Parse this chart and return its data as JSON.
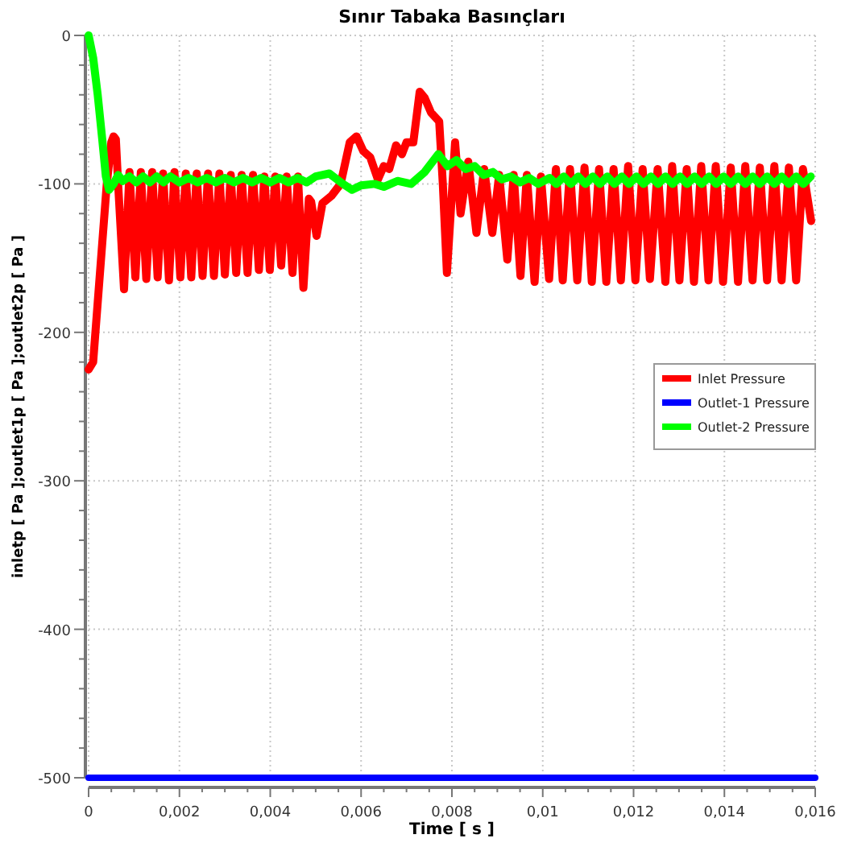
{
  "chart_data": {
    "type": "line",
    "title": "Sınır Tabaka Basınçları",
    "xlabel": "Time [ s ]",
    "ylabel": "inletp [ Pa ];outlet1p [ Pa ];outlet2p [ Pa ]",
    "xlim": [
      0,
      0.016
    ],
    "ylim": [
      -500,
      0
    ],
    "xticks": [
      {
        "value": 0,
        "label": "0"
      },
      {
        "value": 0.0005,
        "label": null
      },
      {
        "value": 0.001,
        "label": null
      },
      {
        "value": 0.0015,
        "label": null
      },
      {
        "value": 0.002,
        "label": "0,002"
      },
      {
        "value": 0.0025,
        "label": null
      },
      {
        "value": 0.003,
        "label": null
      },
      {
        "value": 0.0035,
        "label": null
      },
      {
        "value": 0.004,
        "label": "0,004"
      },
      {
        "value": 0.0045,
        "label": null
      },
      {
        "value": 0.005,
        "label": null
      },
      {
        "value": 0.0055,
        "label": null
      },
      {
        "value": 0.006,
        "label": "0,006"
      },
      {
        "value": 0.0065,
        "label": null
      },
      {
        "value": 0.007,
        "label": null
      },
      {
        "value": 0.0075,
        "label": null
      },
      {
        "value": 0.008,
        "label": "0,008"
      },
      {
        "value": 0.0085,
        "label": null
      },
      {
        "value": 0.009,
        "label": null
      },
      {
        "value": 0.0095,
        "label": null
      },
      {
        "value": 0.01,
        "label": "0,01"
      },
      {
        "value": 0.0105,
        "label": null
      },
      {
        "value": 0.011,
        "label": null
      },
      {
        "value": 0.0115,
        "label": null
      },
      {
        "value": 0.012,
        "label": "0,012"
      },
      {
        "value": 0.0125,
        "label": null
      },
      {
        "value": 0.013,
        "label": null
      },
      {
        "value": 0.0135,
        "label": null
      },
      {
        "value": 0.014,
        "label": "0,014"
      },
      {
        "value": 0.0145,
        "label": null
      },
      {
        "value": 0.015,
        "label": null
      },
      {
        "value": 0.0155,
        "label": null
      },
      {
        "value": 0.016,
        "label": "0,016"
      }
    ],
    "yticks": [
      -500,
      {
        "value": -480,
        "label": null
      },
      {
        "value": -460,
        "label": null
      },
      {
        "value": -440,
        "label": null
      },
      {
        "value": -420,
        "label": null
      },
      -400,
      {
        "value": -380,
        "label": null
      },
      {
        "value": -360,
        "label": null
      },
      {
        "value": -340,
        "label": null
      },
      {
        "value": -320,
        "label": null
      },
      -300,
      {
        "value": -280,
        "label": null
      },
      {
        "value": -260,
        "label": null
      },
      {
        "value": -240,
        "label": null
      },
      {
        "value": -220,
        "label": null
      },
      -200,
      {
        "value": -180,
        "label": null
      },
      {
        "value": -160,
        "label": null
      },
      {
        "value": -140,
        "label": null
      },
      {
        "value": -120,
        "label": null
      },
      -100,
      {
        "value": -80,
        "label": null
      },
      {
        "value": -60,
        "label": null
      },
      {
        "value": -40,
        "label": null
      },
      {
        "value": -20,
        "label": null
      },
      0
    ],
    "grid": true,
    "legend": "right",
    "marker": "none",
    "line_style": "solid",
    "series": [
      {
        "name": "Inlet Pressure",
        "color": "#ff0000",
        "x": [
          0,
          0.0001,
          0.0002,
          0.0003,
          0.0004,
          0.0005,
          0.00055,
          0.0006,
          0.00065,
          0.00078,
          0.0009,
          0.00103,
          0.00115,
          0.00127,
          0.0014,
          0.00152,
          0.00164,
          0.00177,
          0.00189,
          0.00202,
          0.00214,
          0.00226,
          0.00238,
          0.00251,
          0.00263,
          0.00276,
          0.00288,
          0.003,
          0.00313,
          0.00325,
          0.00337,
          0.0035,
          0.00362,
          0.00375,
          0.00387,
          0.00399,
          0.00411,
          0.00424,
          0.00436,
          0.00449,
          0.00461,
          0.00473,
          0.00485,
          0.0049,
          0.00502,
          0.00515,
          0.00535,
          0.00555,
          0.00575,
          0.0059,
          0.00605,
          0.0062,
          0.00637,
          0.0065,
          0.00662,
          0.00677,
          0.0069,
          0.007,
          0.00715,
          0.00729,
          0.0074,
          0.00754,
          0.00772,
          0.0078,
          0.00789,
          0.00807,
          0.00819,
          0.00836,
          0.00854,
          0.00871,
          0.00889,
          0.00904,
          0.00922,
          0.00936,
          0.00951,
          0.00965,
          0.00982,
          0.00996,
          0.01014,
          0.01029,
          0.01044,
          0.0106,
          0.01076,
          0.01092,
          0.01108,
          0.01124,
          0.0114,
          0.01156,
          0.01172,
          0.01188,
          0.01204,
          0.0122,
          0.01236,
          0.01253,
          0.0127,
          0.01285,
          0.01301,
          0.01317,
          0.01333,
          0.01349,
          0.01365,
          0.01381,
          0.01397,
          0.01414,
          0.0143,
          0.01446,
          0.01462,
          0.01478,
          0.01494,
          0.0151,
          0.01526,
          0.01542,
          0.01558,
          0.01573,
          0.01591
        ],
        "values": [
          -225,
          -220,
          -180,
          -140,
          -100,
          -72,
          -68,
          -70,
          -100,
          -171,
          -92,
          -163,
          -92,
          -164,
          -92,
          -163,
          -93,
          -165,
          -92,
          -163,
          -93,
          -163,
          -93,
          -162,
          -93,
          -162,
          -93,
          -161,
          -94,
          -160,
          -94,
          -160,
          -94,
          -158,
          -95,
          -158,
          -95,
          -155,
          -95,
          -160,
          -95,
          -170,
          -110,
          -112,
          -135,
          -113,
          -108,
          -100,
          -72,
          -68,
          -78,
          -82,
          -97,
          -88,
          -90,
          -74,
          -80,
          -72,
          -72,
          -38,
          -42,
          -52,
          -58,
          -100,
          -160,
          -72,
          -120,
          -85,
          -133,
          -90,
          -133,
          -94,
          -151,
          -94,
          -162,
          -94,
          -166,
          -95,
          -164,
          -90,
          -165,
          -90,
          -165,
          -89,
          -166,
          -90,
          -166,
          -90,
          -165,
          -88,
          -165,
          -90,
          -164,
          -90,
          -166,
          -88,
          -165,
          -90,
          -166,
          -88,
          -165,
          -88,
          -166,
          -89,
          -166,
          -88,
          -165,
          -89,
          -165,
          -88,
          -165,
          -89,
          -165,
          -90,
          -125
        ]
      },
      {
        "name": "Outlet-1 Pressure",
        "color": "#0000ff",
        "x": [
          0,
          0.016
        ],
        "values": [
          -500,
          -500
        ]
      },
      {
        "name": "Outlet-2 Pressure",
        "color": "#00ff00",
        "x": [
          0,
          0.0001,
          0.0002,
          0.0003,
          0.00038,
          0.00045,
          0.00055,
          0.00065,
          0.00075,
          0.0009,
          0.00105,
          0.0012,
          0.00135,
          0.0015,
          0.00165,
          0.0018,
          0.002,
          0.0022,
          0.0024,
          0.0026,
          0.0028,
          0.003,
          0.0032,
          0.0034,
          0.0036,
          0.0038,
          0.004,
          0.0042,
          0.0044,
          0.0046,
          0.0048,
          0.005,
          0.0053,
          0.0056,
          0.0058,
          0.006,
          0.0063,
          0.0065,
          0.0068,
          0.0071,
          0.0074,
          0.0077,
          0.0079,
          0.0081,
          0.0083,
          0.0085,
          0.0087,
          0.0089,
          0.0091,
          0.0093,
          0.0095,
          0.0097,
          0.0099,
          0.01015,
          0.0103,
          0.01046,
          0.01062,
          0.01078,
          0.01094,
          0.0111,
          0.01126,
          0.01142,
          0.01158,
          0.01174,
          0.0119,
          0.01206,
          0.01222,
          0.01238,
          0.01254,
          0.0127,
          0.01286,
          0.01302,
          0.01318,
          0.01334,
          0.0135,
          0.01366,
          0.01382,
          0.01398,
          0.01414,
          0.0143,
          0.01446,
          0.01462,
          0.01478,
          0.01494,
          0.0151,
          0.01526,
          0.01542,
          0.01558,
          0.01574,
          0.0159
        ],
        "values": [
          0,
          -15,
          -40,
          -70,
          -95,
          -104,
          -100,
          -94,
          -98,
          -95,
          -99,
          -95,
          -99,
          -95,
          -99,
          -95,
          -99,
          -96,
          -99,
          -96,
          -99,
          -96,
          -99,
          -96,
          -99,
          -96,
          -99,
          -96,
          -99,
          -96,
          -99,
          -95,
          -93,
          -100,
          -104,
          -101,
          -100,
          -102,
          -98,
          -100,
          -92,
          -80,
          -88,
          -84,
          -90,
          -88,
          -94,
          -92,
          -97,
          -95,
          -99,
          -96,
          -100,
          -96,
          -100,
          -95,
          -100,
          -95,
          -100,
          -95,
          -100,
          -95,
          -100,
          -95,
          -100,
          -95,
          -100,
          -95,
          -100,
          -95,
          -100,
          -95,
          -100,
          -95,
          -100,
          -95,
          -100,
          -95,
          -100,
          -95,
          -100,
          -95,
          -100,
          -95,
          -100,
          -95,
          -100,
          -95,
          -100,
          -95
        ]
      }
    ]
  }
}
